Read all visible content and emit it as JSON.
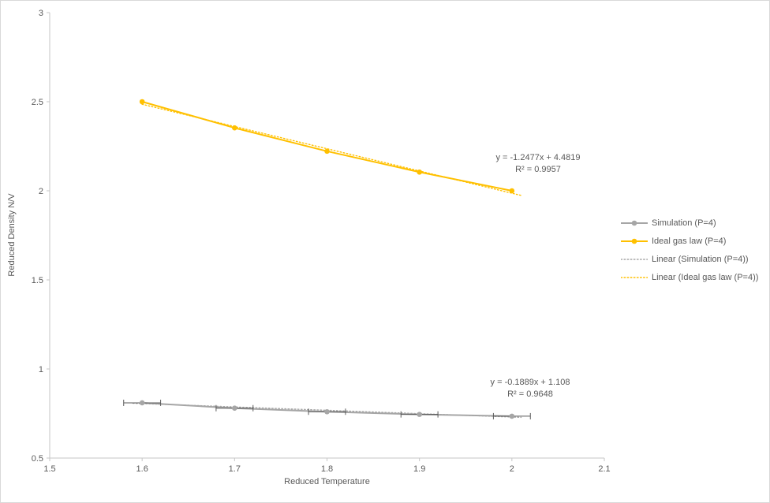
{
  "chart_data": {
    "type": "line",
    "title": "",
    "xlabel": "Reduced Temperature",
    "ylabel": "Reduced Density N/V",
    "xlim": [
      1.5,
      2.1
    ],
    "ylim": [
      0.5,
      3.0
    ],
    "x_ticks": [
      1.5,
      1.6,
      1.7,
      1.8,
      1.9,
      2.0,
      2.1
    ],
    "x_tick_labels": [
      "1.5",
      "1.6",
      "1.7",
      "1.8",
      "1.9",
      "2",
      "2.1"
    ],
    "y_ticks": [
      0.5,
      1.0,
      1.5,
      2.0,
      2.5,
      3.0
    ],
    "y_tick_labels": [
      "0.5",
      "1",
      "1.5",
      "2",
      "2.5",
      "3"
    ],
    "grid": false,
    "legend_position": "right",
    "x": [
      1.6,
      1.7,
      1.8,
      1.9,
      2.0
    ],
    "series": [
      {
        "name": "Simulation (P=4)",
        "color": "#a6a6a6",
        "marker": "circle",
        "values": [
          0.81,
          0.78,
          0.76,
          0.745,
          0.735
        ],
        "x_error": 0.02
      },
      {
        "name": "Ideal gas law (P=4)",
        "color": "#ffc000",
        "marker": "circle",
        "values": [
          2.5,
          2.353,
          2.222,
          2.105,
          2.0
        ]
      }
    ],
    "trendlines": [
      {
        "name": "Linear (Simulation (P=4))",
        "color": "#a6a6a6",
        "slope": -0.1889,
        "intercept": 1.108,
        "x_range": [
          1.59,
          2.01
        ],
        "equation": "y = -0.1889x + 1.108",
        "r2": "R² = 0.9648"
      },
      {
        "name": "Linear (Ideal gas law (P=4))",
        "color": "#ffc000",
        "slope": -1.2477,
        "intercept": 4.4819,
        "x_range": [
          1.6,
          2.01
        ],
        "equation": "y = -1.2477x + 4.4819",
        "r2": "R² = 0.9957"
      }
    ]
  }
}
